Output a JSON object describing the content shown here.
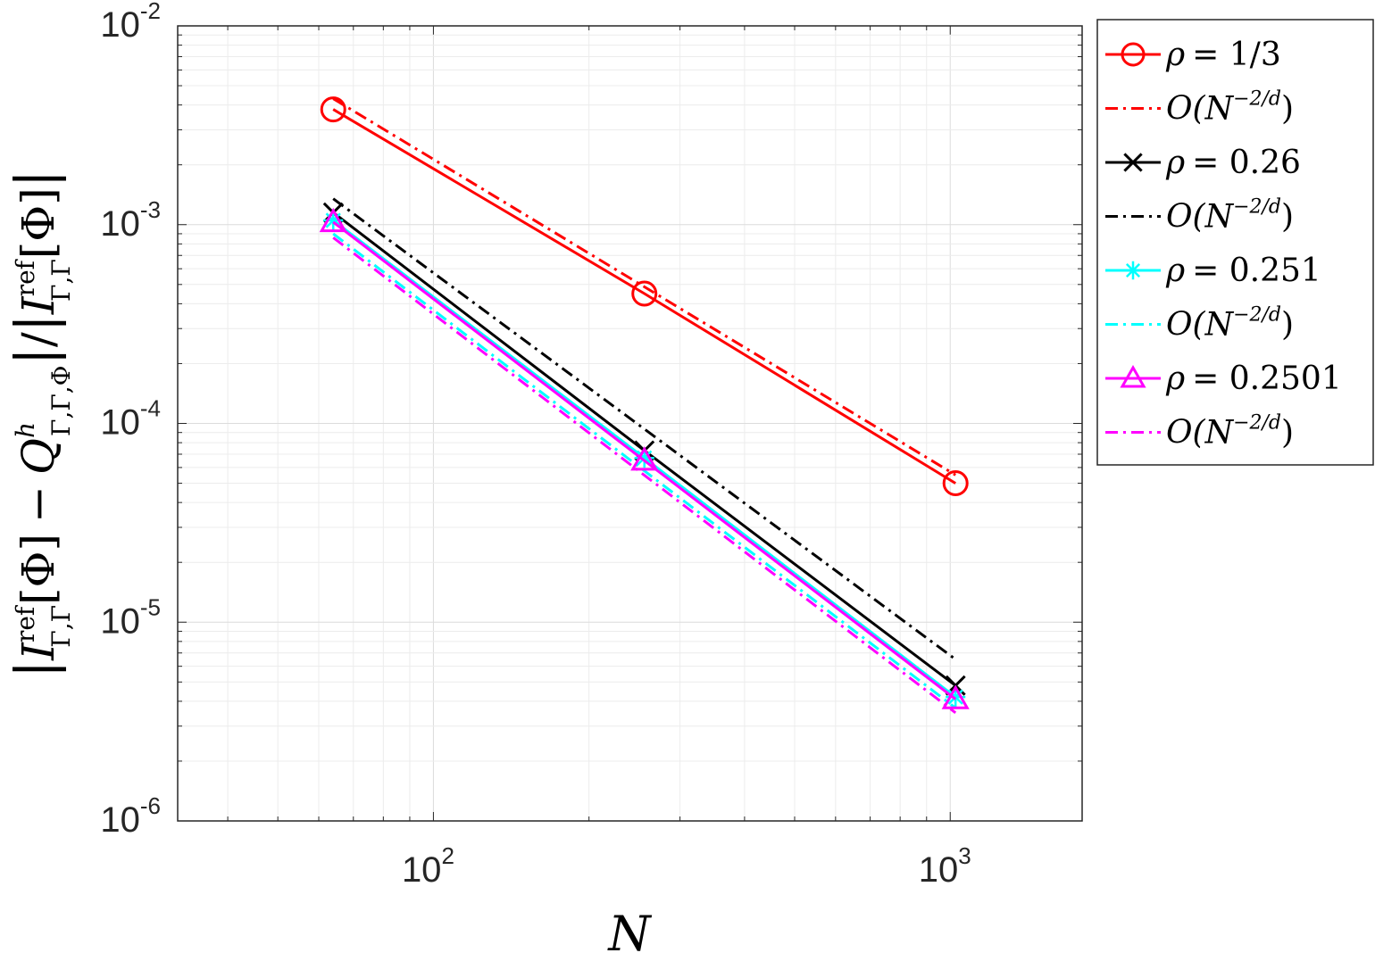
{
  "chart_data": {
    "type": "line",
    "xscale": "log",
    "yscale": "log",
    "xlim": [
      32,
      1800
    ],
    "ylim": [
      1e-06,
      0.01
    ],
    "grid": true,
    "minor_grid": true,
    "xlabel": "N",
    "ylabel": "|I_ref[Φ] − Q^h[Φ]| / |I_ref[Φ]|",
    "x_ticks": [
      {
        "base": "10",
        "exp": "2",
        "value": 100
      },
      {
        "base": "10",
        "exp": "3",
        "value": 1000
      }
    ],
    "y_ticks": [
      {
        "base": "10",
        "exp": "-2",
        "value": 0.01
      },
      {
        "base": "10",
        "exp": "-3",
        "value": 0.001
      },
      {
        "base": "10",
        "exp": "-4",
        "value": 0.0001
      },
      {
        "base": "10",
        "exp": "-5",
        "value": 1e-05
      },
      {
        "base": "10",
        "exp": "-6",
        "value": 1e-06
      }
    ],
    "legend_position": "outside-top-right",
    "series": [
      {
        "name": "ρ = 1/3",
        "color": "#ff0000",
        "style": "solid",
        "marker": "circle",
        "x": [
          64,
          256,
          1024
        ],
        "y": [
          0.0038,
          0.00045,
          5e-05
        ]
      },
      {
        "name": "O(N^−2/d)",
        "color": "#ff0000",
        "style": "dashdot",
        "marker": "none",
        "x": [
          64,
          1024
        ],
        "y": [
          0.0043,
          5.5e-05
        ]
      },
      {
        "name": "ρ = 0.26",
        "color": "#000000",
        "style": "solid",
        "marker": "x",
        "x": [
          64,
          256,
          1024
        ],
        "y": [
          0.00115,
          7.3e-05,
          4.8e-06
        ]
      },
      {
        "name": "O(N^−2/d)",
        "color": "#000000",
        "style": "dashdot",
        "marker": "none",
        "x": [
          64,
          1024
        ],
        "y": [
          0.00135,
          6.5e-06
        ]
      },
      {
        "name": "ρ = 0.251",
        "color": "#00ffff",
        "style": "solid",
        "marker": "asterisk",
        "x": [
          64,
          256,
          1024
        ],
        "y": [
          0.00105,
          6.7e-05,
          4.2e-06
        ]
      },
      {
        "name": "O(N^−2/d)",
        "color": "#00ffff",
        "style": "dashdot",
        "marker": "none",
        "x": [
          64,
          1024
        ],
        "y": [
          0.0009,
          3.7e-06
        ]
      },
      {
        "name": "ρ = 0.2501",
        "color": "#ff00ff",
        "style": "solid",
        "marker": "triangle",
        "x": [
          64,
          256,
          1024
        ],
        "y": [
          0.00103,
          6.5e-05,
          4.1e-06
        ]
      },
      {
        "name": "O(N^−2/d)",
        "color": "#ff00ff",
        "style": "dashdot",
        "marker": "none",
        "x": [
          64,
          1024
        ],
        "y": [
          0.00086,
          3.5e-06
        ]
      }
    ]
  },
  "legend": [
    {
      "lhs": "ρ",
      "rhs": "= 1/3",
      "kind": "rho"
    },
    {
      "lhs": "O(N",
      "exp": "−2/d",
      "tail": ")",
      "kind": "order"
    },
    {
      "lhs": "ρ",
      "rhs": "= 0.26",
      "kind": "rho"
    },
    {
      "lhs": "O(N",
      "exp": "−2/d",
      "tail": ")",
      "kind": "order"
    },
    {
      "lhs": "ρ",
      "rhs": "= 0.251",
      "kind": "rho"
    },
    {
      "lhs": "O(N",
      "exp": "−2/d",
      "tail": ")",
      "kind": "order"
    },
    {
      "lhs": "ρ",
      "rhs": "= 0.2501",
      "kind": "rho"
    },
    {
      "lhs": "O(N",
      "exp": "−2/d",
      "tail": ")",
      "kind": "order"
    }
  ],
  "axis_labels": {
    "x": "N",
    "y_parts": {
      "I": "I",
      "ref": "ref",
      "gg": "Γ,Γ",
      "phi": "[Φ]",
      "minus": "−",
      "Q": "Q",
      "h": "h",
      "ggp": "Γ,Γ,Φ"
    }
  }
}
